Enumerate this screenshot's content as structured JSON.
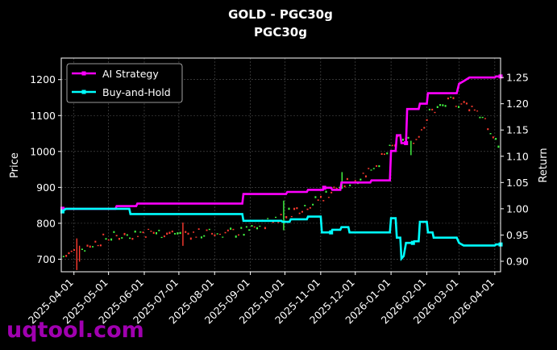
{
  "chart_data": {
    "type": "line",
    "title": "GOLD - PGC30g",
    "subtitle": "PGC30g",
    "xlabel": "",
    "ylabel": "Price",
    "ylabel_right": "Return",
    "ylim": [
      665,
      1260
    ],
    "ylim_right": [
      0.88,
      1.287
    ],
    "yticks": [
      700,
      800,
      900,
      1000,
      1100,
      1200
    ],
    "yticks_right": [
      0.9,
      0.95,
      1.0,
      1.05,
      1.1,
      1.15,
      1.2,
      1.25
    ],
    "ytick_labels_right": [
      "0.90",
      "0.95",
      "1.00",
      "1.05",
      "1.10",
      "1.15",
      "1.20",
      "1.25"
    ],
    "xlim": [
      "2025-03-21",
      "2026-04-06"
    ],
    "xticks": [
      "2025-04-01",
      "2025-05-01",
      "2025-06-01",
      "2025-07-01",
      "2025-08-01",
      "2025-09-01",
      "2025-10-01",
      "2025-11-01",
      "2025-12-01",
      "2026-01-01",
      "2026-02-01",
      "2026-03-01",
      "2026-04-01"
    ],
    "grid": true,
    "legend_position": "top-left",
    "series": [
      {
        "name": "AI Strategy",
        "color": "#ff00ff",
        "axis": "right",
        "points": [
          [
            "2025-03-22",
            1.0
          ],
          [
            "2025-05-07",
            1.0
          ],
          [
            "2025-05-08",
            1.005
          ],
          [
            "2025-05-25",
            1.005
          ],
          [
            "2025-05-26",
            1.01
          ],
          [
            "2025-08-25",
            1.01
          ],
          [
            "2025-08-26",
            1.028
          ],
          [
            "2025-10-02",
            1.028
          ],
          [
            "2025-10-03",
            1.032
          ],
          [
            "2025-10-20",
            1.032
          ],
          [
            "2025-10-21",
            1.036
          ],
          [
            "2025-11-03",
            1.036
          ],
          [
            "2025-11-04",
            1.04
          ],
          [
            "2025-11-10",
            1.04
          ],
          [
            "2025-11-11",
            1.036
          ],
          [
            "2025-11-18",
            1.036
          ],
          [
            "2025-11-19",
            1.05
          ],
          [
            "2025-12-14",
            1.05
          ],
          [
            "2025-12-15",
            1.054
          ],
          [
            "2025-12-31",
            1.054
          ],
          [
            "2026-01-01",
            1.11
          ],
          [
            "2026-01-05",
            1.11
          ],
          [
            "2026-01-06",
            1.14
          ],
          [
            "2026-01-09",
            1.14
          ],
          [
            "2026-01-10",
            1.125
          ],
          [
            "2026-01-14",
            1.125
          ],
          [
            "2026-01-15",
            1.19
          ],
          [
            "2026-01-25",
            1.19
          ],
          [
            "2026-01-26",
            1.2
          ],
          [
            "2026-02-01",
            1.2
          ],
          [
            "2026-02-02",
            1.22
          ],
          [
            "2026-02-27",
            1.22
          ],
          [
            "2026-03-01",
            1.238
          ],
          [
            "2026-03-05",
            1.243
          ],
          [
            "2026-03-10",
            1.25
          ],
          [
            "2026-04-01",
            1.25
          ],
          [
            "2026-04-02",
            1.252
          ],
          [
            "2026-04-06",
            1.252
          ]
        ]
      },
      {
        "name": "Buy-and-Hold",
        "color": "#00ffff",
        "axis": "right",
        "points": [
          [
            "2025-03-22",
            0.995
          ],
          [
            "2025-03-25",
            1.0
          ],
          [
            "2025-05-19",
            1.0
          ],
          [
            "2025-05-20",
            0.99
          ],
          [
            "2025-08-25",
            0.99
          ],
          [
            "2025-08-26",
            0.977
          ],
          [
            "2025-09-28",
            0.977
          ],
          [
            "2025-09-29",
            0.975
          ],
          [
            "2025-10-05",
            0.975
          ],
          [
            "2025-10-06",
            0.98
          ],
          [
            "2025-10-20",
            0.98
          ],
          [
            "2025-10-21",
            0.985
          ],
          [
            "2025-11-01",
            0.985
          ],
          [
            "2025-11-02",
            0.955
          ],
          [
            "2025-11-10",
            0.955
          ],
          [
            "2025-11-11",
            0.96
          ],
          [
            "2025-11-18",
            0.96
          ],
          [
            "2025-11-19",
            0.965
          ],
          [
            "2025-11-25",
            0.965
          ],
          [
            "2025-11-26",
            0.955
          ],
          [
            "2025-12-31",
            0.955
          ],
          [
            "2026-01-01",
            0.982
          ],
          [
            "2026-01-05",
            0.982
          ],
          [
            "2026-01-06",
            0.945
          ],
          [
            "2026-01-09",
            0.945
          ],
          [
            "2026-01-10",
            0.905
          ],
          [
            "2026-01-12",
            0.91
          ],
          [
            "2026-01-14",
            0.935
          ],
          [
            "2026-01-20",
            0.935
          ],
          [
            "2026-01-21",
            0.938
          ],
          [
            "2026-01-25",
            0.938
          ],
          [
            "2026-01-26",
            0.975
          ],
          [
            "2026-02-01",
            0.975
          ],
          [
            "2026-02-02",
            0.955
          ],
          [
            "2026-02-06",
            0.955
          ],
          [
            "2026-02-07",
            0.945
          ],
          [
            "2026-02-27",
            0.945
          ],
          [
            "2026-03-01",
            0.935
          ],
          [
            "2026-03-05",
            0.93
          ],
          [
            "2026-03-10",
            0.93
          ],
          [
            "2026-04-01",
            0.93
          ],
          [
            "2026-04-02",
            0.932
          ],
          [
            "2026-04-06",
            0.932
          ]
        ]
      }
    ]
  },
  "watermark": "uqtool.com"
}
